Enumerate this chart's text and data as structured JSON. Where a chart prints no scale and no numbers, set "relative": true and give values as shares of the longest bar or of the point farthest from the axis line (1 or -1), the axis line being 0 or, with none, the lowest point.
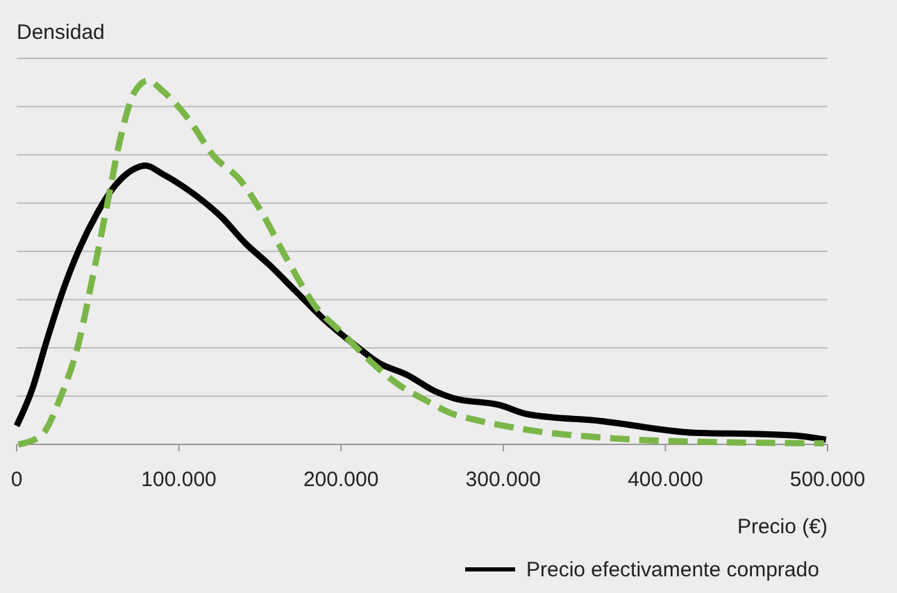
{
  "chart_data": {
    "type": "line",
    "relative": true,
    "ylabel": "Densidad",
    "xlabel": "Precio (€)",
    "xlim": [
      0,
      500000
    ],
    "xticks": [
      0,
      {
        "value": 100000,
        "label": "100.000"
      },
      {
        "value": 200000,
        "label": "200.000"
      },
      {
        "value": 300000,
        "label": "300.000"
      },
      {
        "value": 400000,
        "label": "400.000"
      },
      {
        "value": 500000,
        "label": "500.000"
      }
    ],
    "grid": "y",
    "legend": "bottom right",
    "series": [
      {
        "name": "Precio efectivamente comprado",
        "color": "#000000",
        "line_style": "solid",
        "x": [
          0,
          9700,
          18200,
          28300,
          38300,
          49700,
          61000,
          72500,
          79600,
          89600,
          109600,
          126700,
          141000,
          155200,
          172300,
          189400,
          206600,
          223700,
          240800,
          258000,
          269400,
          297900,
          315000,
          360700,
          417800,
          460600,
          483400,
          499000
        ],
        "values": [
          0.051,
          0.153,
          0.28,
          0.42,
          0.534,
          0.636,
          0.713,
          0.757,
          0.766,
          0.744,
          0.687,
          0.623,
          0.553,
          0.496,
          0.42,
          0.344,
          0.28,
          0.223,
          0.191,
          0.146,
          0.127,
          0.108,
          0.083,
          0.064,
          0.032,
          0.028,
          0.023,
          0.013
        ]
      },
      {
        "color": "#7ab648",
        "line_style": "dashed",
        "x": [
          1100,
          15400,
          26800,
          38300,
          46800,
          55400,
          63900,
          72500,
          81100,
          89600,
          106700,
          121000,
          138100,
          149600,
          166700,
          183800,
          201000,
          218000,
          235200,
          252300,
          269400,
          275100,
          317900,
          360700,
          403500,
          497700
        ],
        "values": [
          0,
          0.026,
          0.127,
          0.28,
          0.458,
          0.649,
          0.84,
          0.967,
          1,
          0.973,
          0.89,
          0.795,
          0.725,
          0.649,
          0.509,
          0.382,
          0.305,
          0.229,
          0.165,
          0.121,
          0.083,
          0.076,
          0.038,
          0.019,
          0.009,
          0.003
        ]
      }
    ]
  }
}
